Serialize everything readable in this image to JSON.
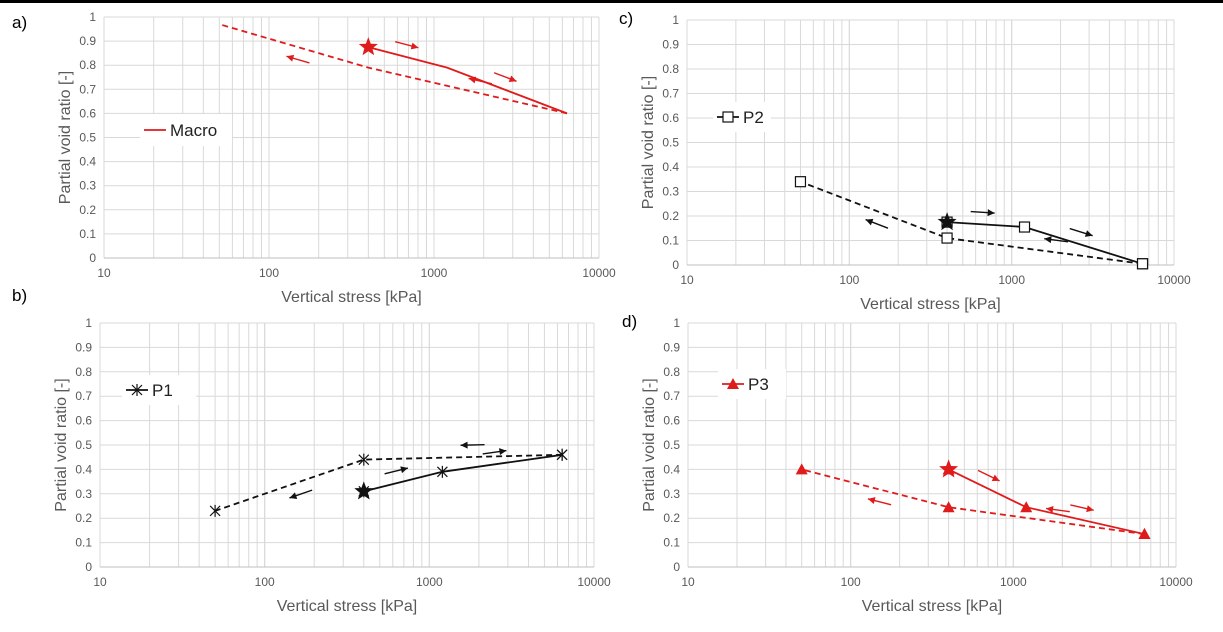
{
  "colors": {
    "red": "#e01b1b",
    "black": "#111111",
    "grid": "#d9d9d9",
    "axis": "#595959"
  },
  "chart_data": [
    {
      "panel_label": "a)",
      "type": "line",
      "xscale": "log",
      "xlim": [
        10,
        10000
      ],
      "ylim": [
        0,
        1
      ],
      "xticks": [
        "10",
        "100",
        "1000",
        "10000"
      ],
      "yticks": [
        "0",
        "0.1",
        "0.2",
        "0.3",
        "0.4",
        "0.5",
        "0.6",
        "0.7",
        "0.8",
        "0.9",
        "1"
      ],
      "xlabel": "Vertical stress [kPa]",
      "ylabel": "Partial void ratio [-]",
      "grid": true,
      "legend": {
        "label": "Macro",
        "placement": "middle-left"
      },
      "color": "red",
      "marker": "none",
      "loading": {
        "x": [
          400,
          1200,
          6400
        ],
        "y": [
          0.875,
          0.79,
          0.6
        ]
      },
      "unloading": {
        "x": [
          6400,
          400,
          50
        ],
        "y": [
          0.6,
          0.79,
          0.97
        ]
      },
      "initial_state": {
        "x": 400,
        "y": 0.875
      }
    },
    {
      "panel_label": "b)",
      "type": "line",
      "xscale": "log",
      "xlim": [
        10,
        10000
      ],
      "ylim": [
        0,
        1
      ],
      "xticks": [
        "10",
        "100",
        "1000",
        "10000"
      ],
      "yticks": [
        "0",
        "0.1",
        "0.2",
        "0.3",
        "0.4",
        "0.5",
        "0.6",
        "0.7",
        "0.8",
        "0.9",
        "1"
      ],
      "xlabel": "Vertical stress [kPa]",
      "ylabel": "Partial void ratio [-]",
      "grid": true,
      "legend": {
        "label": "P1",
        "placement": "top-left"
      },
      "color": "black",
      "marker": "asterisk",
      "loading": {
        "x": [
          400,
          1200,
          6400
        ],
        "y": [
          0.31,
          0.39,
          0.46
        ]
      },
      "unloading": {
        "x": [
          6400,
          400,
          50
        ],
        "y": [
          0.46,
          0.44,
          0.23
        ]
      },
      "initial_state": {
        "x": 400,
        "y": 0.31
      }
    },
    {
      "panel_label": "c)",
      "type": "line",
      "xscale": "log",
      "xlim": [
        10,
        10000
      ],
      "ylim": [
        0,
        1
      ],
      "xticks": [
        "10",
        "100",
        "1000",
        "10000"
      ],
      "yticks": [
        "0",
        "0.1",
        "0.2",
        "0.3",
        "0.4",
        "0.5",
        "0.6",
        "0.7",
        "0.8",
        "0.9",
        "1"
      ],
      "xlabel": "Vertical stress [kPa]",
      "ylabel": "Partial void ratio [-]",
      "grid": true,
      "legend": {
        "label": "P2",
        "placement": "middle-left"
      },
      "color": "black",
      "marker": "square",
      "loading": {
        "x": [
          400,
          1200,
          6400
        ],
        "y": [
          0.175,
          0.155,
          0.005
        ]
      },
      "unloading": {
        "x": [
          6400,
          400,
          50
        ],
        "y": [
          0.005,
          0.11,
          0.34
        ]
      },
      "initial_state": {
        "x": 400,
        "y": 0.175
      }
    },
    {
      "panel_label": "d)",
      "type": "line",
      "xscale": "log",
      "xlim": [
        10,
        10000
      ],
      "ylim": [
        0,
        1
      ],
      "xticks": [
        "10",
        "100",
        "1000",
        "10000"
      ],
      "yticks": [
        "0",
        "0.1",
        "0.2",
        "0.3",
        "0.4",
        "0.5",
        "0.6",
        "0.7",
        "0.8",
        "0.9",
        "1"
      ],
      "xlabel": "Vertical stress [kPa]",
      "ylabel": "Partial void ratio [-]",
      "grid": true,
      "legend": {
        "label": "P3",
        "placement": "top-left"
      },
      "color": "red",
      "marker": "triangle",
      "loading": {
        "x": [
          400,
          1200,
          6400
        ],
        "y": [
          0.4,
          0.245,
          0.135
        ]
      },
      "unloading": {
        "x": [
          6400,
          400,
          50
        ],
        "y": [
          0.135,
          0.245,
          0.4
        ]
      },
      "initial_state": {
        "x": 400,
        "y": 0.4
      }
    }
  ]
}
